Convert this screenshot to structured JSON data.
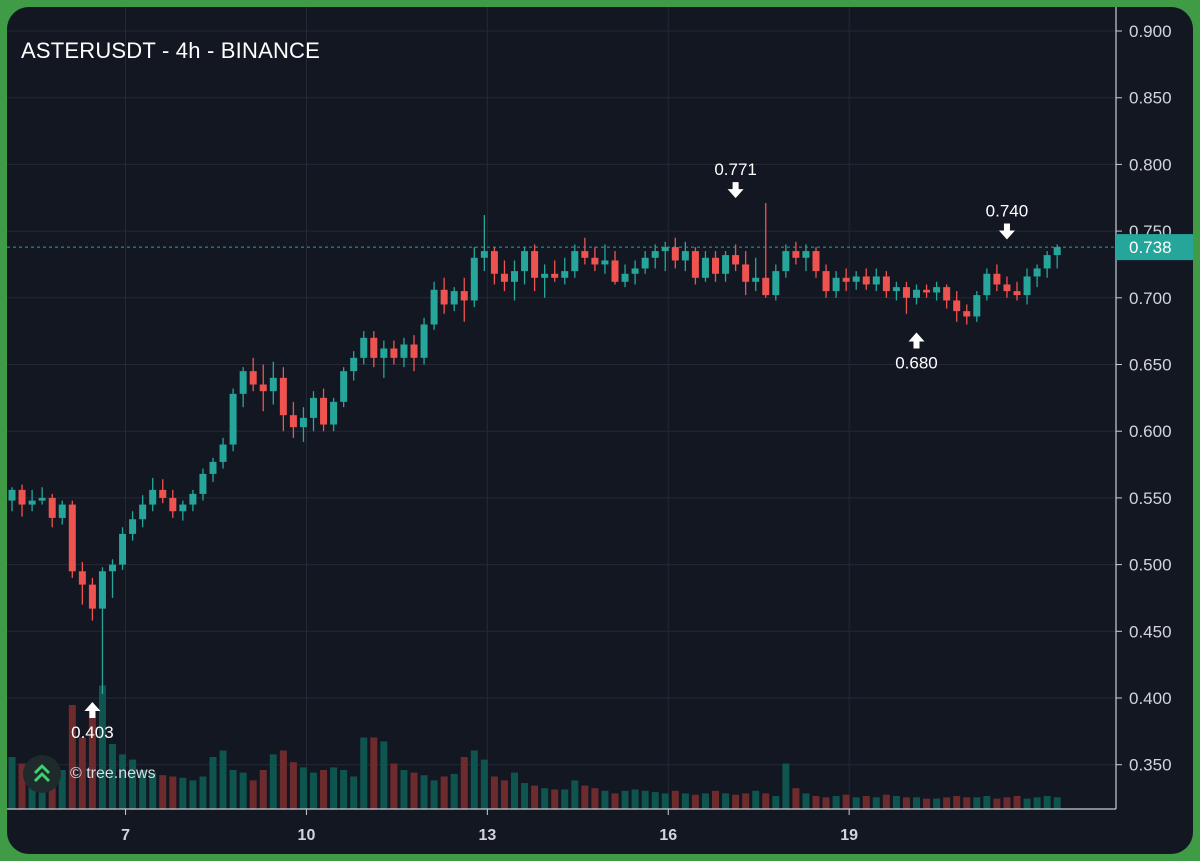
{
  "chart_data": {
    "type": "candlestick",
    "title": "ASTERUSDT - 4h - BINANCE",
    "symbol": "ASTERUSDT",
    "interval": "4h",
    "exchange": "BINANCE",
    "y_axis": {
      "ticks": [
        "0.900",
        "0.850",
        "0.800",
        "0.750",
        "0.700",
        "0.650",
        "0.600",
        "0.550",
        "0.500",
        "0.450",
        "0.400",
        "0.350"
      ],
      "range": [
        0.313,
        0.915
      ]
    },
    "x_axis": {
      "ticks": [
        {
          "label": "7",
          "index": 11
        },
        {
          "label": "10",
          "index": 29
        },
        {
          "label": "13",
          "index": 47
        },
        {
          "label": "16",
          "index": 65
        },
        {
          "label": "19",
          "index": 83
        }
      ]
    },
    "current_price": {
      "label": "0.738",
      "value": 0.738
    },
    "annotations": [
      {
        "label": "0.403",
        "value": 0.403,
        "index": 8,
        "direction": "up"
      },
      {
        "label": "0.771",
        "value": 0.771,
        "index": 72,
        "direction": "down"
      },
      {
        "label": "0.680",
        "value": 0.68,
        "index": 90,
        "direction": "up"
      },
      {
        "label": "0.740",
        "value": 0.74,
        "index": 99,
        "direction": "down"
      }
    ],
    "grid": true,
    "colors": {
      "up": "#26a69a",
      "down": "#ef5350",
      "vol_up": "#0e5550",
      "vol_down": "#6e2b2d"
    },
    "candles": [
      [
        0.548,
        0.558,
        0.54,
        0.556
      ],
      [
        0.556,
        0.56,
        0.536,
        0.545
      ],
      [
        0.545,
        0.556,
        0.54,
        0.548
      ],
      [
        0.548,
        0.558,
        0.545,
        0.55
      ],
      [
        0.55,
        0.553,
        0.528,
        0.535
      ],
      [
        0.535,
        0.548,
        0.53,
        0.545
      ],
      [
        0.545,
        0.548,
        0.49,
        0.495
      ],
      [
        0.495,
        0.502,
        0.47,
        0.485
      ],
      [
        0.485,
        0.49,
        0.458,
        0.467
      ],
      [
        0.467,
        0.498,
        0.403,
        0.495
      ],
      [
        0.495,
        0.504,
        0.475,
        0.5
      ],
      [
        0.5,
        0.528,
        0.496,
        0.523
      ],
      [
        0.523,
        0.54,
        0.518,
        0.534
      ],
      [
        0.534,
        0.552,
        0.528,
        0.545
      ],
      [
        0.545,
        0.565,
        0.54,
        0.556
      ],
      [
        0.556,
        0.564,
        0.546,
        0.55
      ],
      [
        0.55,
        0.556,
        0.535,
        0.54
      ],
      [
        0.54,
        0.548,
        0.533,
        0.545
      ],
      [
        0.545,
        0.556,
        0.54,
        0.553
      ],
      [
        0.553,
        0.572,
        0.548,
        0.568
      ],
      [
        0.568,
        0.58,
        0.562,
        0.577
      ],
      [
        0.577,
        0.595,
        0.572,
        0.59
      ],
      [
        0.59,
        0.632,
        0.585,
        0.628
      ],
      [
        0.628,
        0.648,
        0.618,
        0.645
      ],
      [
        0.645,
        0.655,
        0.63,
        0.635
      ],
      [
        0.635,
        0.65,
        0.615,
        0.63
      ],
      [
        0.63,
        0.652,
        0.62,
        0.64
      ],
      [
        0.64,
        0.648,
        0.6,
        0.612
      ],
      [
        0.612,
        0.622,
        0.595,
        0.603
      ],
      [
        0.603,
        0.618,
        0.592,
        0.61
      ],
      [
        0.61,
        0.63,
        0.6,
        0.625
      ],
      [
        0.625,
        0.632,
        0.6,
        0.605
      ],
      [
        0.605,
        0.625,
        0.6,
        0.622
      ],
      [
        0.622,
        0.648,
        0.618,
        0.645
      ],
      [
        0.645,
        0.66,
        0.638,
        0.655
      ],
      [
        0.655,
        0.675,
        0.65,
        0.67
      ],
      [
        0.67,
        0.675,
        0.648,
        0.655
      ],
      [
        0.655,
        0.668,
        0.64,
        0.662
      ],
      [
        0.662,
        0.668,
        0.65,
        0.655
      ],
      [
        0.655,
        0.67,
        0.648,
        0.665
      ],
      [
        0.665,
        0.672,
        0.645,
        0.655
      ],
      [
        0.655,
        0.685,
        0.65,
        0.68
      ],
      [
        0.68,
        0.712,
        0.676,
        0.706
      ],
      [
        0.706,
        0.715,
        0.688,
        0.695
      ],
      [
        0.695,
        0.708,
        0.69,
        0.705
      ],
      [
        0.705,
        0.715,
        0.682,
        0.698
      ],
      [
        0.698,
        0.738,
        0.693,
        0.73
      ],
      [
        0.73,
        0.762,
        0.72,
        0.735
      ],
      [
        0.735,
        0.738,
        0.71,
        0.718
      ],
      [
        0.718,
        0.728,
        0.705,
        0.712
      ],
      [
        0.712,
        0.728,
        0.698,
        0.72
      ],
      [
        0.72,
        0.738,
        0.71,
        0.735
      ],
      [
        0.735,
        0.74,
        0.705,
        0.715
      ],
      [
        0.715,
        0.725,
        0.7,
        0.718
      ],
      [
        0.718,
        0.728,
        0.712,
        0.715
      ],
      [
        0.715,
        0.73,
        0.71,
        0.72
      ],
      [
        0.72,
        0.74,
        0.715,
        0.735
      ],
      [
        0.735,
        0.745,
        0.725,
        0.73
      ],
      [
        0.73,
        0.738,
        0.72,
        0.725
      ],
      [
        0.725,
        0.74,
        0.718,
        0.728
      ],
      [
        0.728,
        0.735,
        0.71,
        0.712
      ],
      [
        0.712,
        0.725,
        0.708,
        0.718
      ],
      [
        0.718,
        0.728,
        0.71,
        0.722
      ],
      [
        0.722,
        0.735,
        0.718,
        0.73
      ],
      [
        0.73,
        0.74,
        0.722,
        0.735
      ],
      [
        0.735,
        0.742,
        0.72,
        0.738
      ],
      [
        0.738,
        0.745,
        0.722,
        0.728
      ],
      [
        0.728,
        0.742,
        0.72,
        0.735
      ],
      [
        0.735,
        0.738,
        0.71,
        0.715
      ],
      [
        0.715,
        0.735,
        0.712,
        0.73
      ],
      [
        0.73,
        0.735,
        0.712,
        0.718
      ],
      [
        0.718,
        0.735,
        0.712,
        0.732
      ],
      [
        0.732,
        0.74,
        0.72,
        0.725
      ],
      [
        0.725,
        0.735,
        0.702,
        0.712
      ],
      [
        0.712,
        0.73,
        0.705,
        0.715
      ],
      [
        0.715,
        0.771,
        0.7,
        0.702
      ],
      [
        0.702,
        0.725,
        0.698,
        0.72
      ],
      [
        0.72,
        0.74,
        0.715,
        0.735
      ],
      [
        0.735,
        0.742,
        0.725,
        0.73
      ],
      [
        0.73,
        0.74,
        0.72,
        0.735
      ],
      [
        0.735,
        0.738,
        0.715,
        0.72
      ],
      [
        0.72,
        0.725,
        0.7,
        0.705
      ],
      [
        0.705,
        0.72,
        0.7,
        0.715
      ],
      [
        0.715,
        0.722,
        0.705,
        0.712
      ],
      [
        0.712,
        0.72,
        0.706,
        0.716
      ],
      [
        0.716,
        0.722,
        0.706,
        0.71
      ],
      [
        0.71,
        0.722,
        0.705,
        0.716
      ],
      [
        0.716,
        0.72,
        0.7,
        0.705
      ],
      [
        0.705,
        0.712,
        0.698,
        0.708
      ],
      [
        0.708,
        0.712,
        0.688,
        0.7
      ],
      [
        0.7,
        0.71,
        0.695,
        0.706
      ],
      [
        0.706,
        0.71,
        0.7,
        0.704
      ],
      [
        0.704,
        0.712,
        0.698,
        0.708
      ],
      [
        0.708,
        0.71,
        0.692,
        0.698
      ],
      [
        0.698,
        0.705,
        0.682,
        0.69
      ],
      [
        0.69,
        0.695,
        0.68,
        0.686
      ],
      [
        0.686,
        0.705,
        0.682,
        0.702
      ],
      [
        0.702,
        0.722,
        0.698,
        0.718
      ],
      [
        0.718,
        0.725,
        0.705,
        0.71
      ],
      [
        0.71,
        0.716,
        0.7,
        0.705
      ],
      [
        0.705,
        0.712,
        0.698,
        0.702
      ],
      [
        0.702,
        0.722,
        0.695,
        0.716
      ],
      [
        0.716,
        0.725,
        0.708,
        0.722
      ],
      [
        0.722,
        0.735,
        0.715,
        0.732
      ],
      [
        0.732,
        0.74,
        0.722,
        0.738
      ]
    ],
    "volume": [
      40,
      35,
      30,
      28,
      32,
      30,
      80,
      55,
      75,
      95,
      50,
      42,
      38,
      30,
      28,
      26,
      25,
      24,
      22,
      25,
      40,
      45,
      30,
      28,
      22,
      30,
      42,
      45,
      36,
      32,
      28,
      30,
      32,
      30,
      25,
      55,
      55,
      52,
      35,
      30,
      28,
      26,
      22,
      25,
      27,
      40,
      45,
      38,
      25,
      22,
      28,
      20,
      18,
      16,
      15,
      15,
      22,
      18,
      16,
      14,
      12,
      14,
      15,
      14,
      13,
      12,
      14,
      12,
      11,
      12,
      14,
      12,
      11,
      12,
      14,
      12,
      10,
      35,
      16,
      12,
      10,
      9,
      10,
      11,
      9,
      10,
      9,
      11,
      10,
      9,
      9,
      8,
      8,
      9,
      10,
      9,
      9,
      10,
      8,
      9,
      10,
      8,
      9,
      10,
      9
    ]
  },
  "watermark": {
    "text": "© tree.news"
  }
}
